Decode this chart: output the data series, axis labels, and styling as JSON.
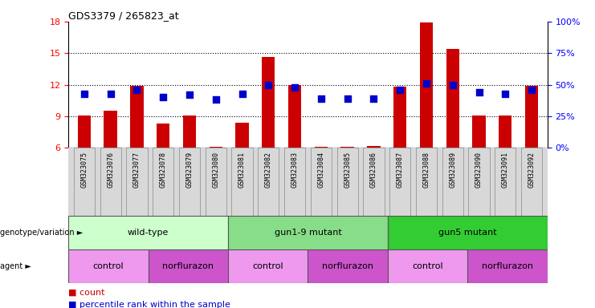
{
  "title": "GDS3379 / 265823_at",
  "samples": [
    "GSM323075",
    "GSM323076",
    "GSM323077",
    "GSM323078",
    "GSM323079",
    "GSM323080",
    "GSM323081",
    "GSM323082",
    "GSM323083",
    "GSM323084",
    "GSM323085",
    "GSM323086",
    "GSM323087",
    "GSM323088",
    "GSM323089",
    "GSM323090",
    "GSM323091",
    "GSM323092"
  ],
  "counts": [
    9.1,
    9.5,
    11.9,
    8.3,
    9.1,
    6.1,
    8.4,
    14.6,
    12.0,
    6.1,
    6.1,
    6.2,
    11.8,
    17.9,
    15.4,
    9.1,
    9.1,
    11.9
  ],
  "percentile_ranks_pct": [
    43,
    43,
    46,
    40,
    42,
    38,
    43,
    50,
    48,
    39,
    39,
    39,
    46,
    51,
    50,
    44,
    43,
    46
  ],
  "ylim_left": [
    6,
    18
  ],
  "ylim_right": [
    0,
    100
  ],
  "yticks_left": [
    6,
    9,
    12,
    15,
    18
  ],
  "yticks_right": [
    0,
    25,
    50,
    75,
    100
  ],
  "bar_color": "#cc0000",
  "dot_color": "#0000cc",
  "genotype_groups": [
    {
      "label": "wild-type",
      "start": 0,
      "end": 6,
      "color": "#ccffcc"
    },
    {
      "label": "gun1-9 mutant",
      "start": 6,
      "end": 12,
      "color": "#88dd88"
    },
    {
      "label": "gun5 mutant",
      "start": 12,
      "end": 18,
      "color": "#33cc33"
    }
  ],
  "agent_groups": [
    {
      "label": "control",
      "start": 0,
      "end": 3,
      "color": "#ee99ee"
    },
    {
      "label": "norflurazon",
      "start": 3,
      "end": 6,
      "color": "#cc55cc"
    },
    {
      "label": "control",
      "start": 6,
      "end": 9,
      "color": "#ee99ee"
    },
    {
      "label": "norflurazon",
      "start": 9,
      "end": 12,
      "color": "#cc55cc"
    },
    {
      "label": "control",
      "start": 12,
      "end": 15,
      "color": "#ee99ee"
    },
    {
      "label": "norflurazon",
      "start": 15,
      "end": 18,
      "color": "#cc55cc"
    }
  ],
  "bar_width": 0.5,
  "dot_size": 28,
  "label_fontsize": 7,
  "annot_fontsize": 8
}
